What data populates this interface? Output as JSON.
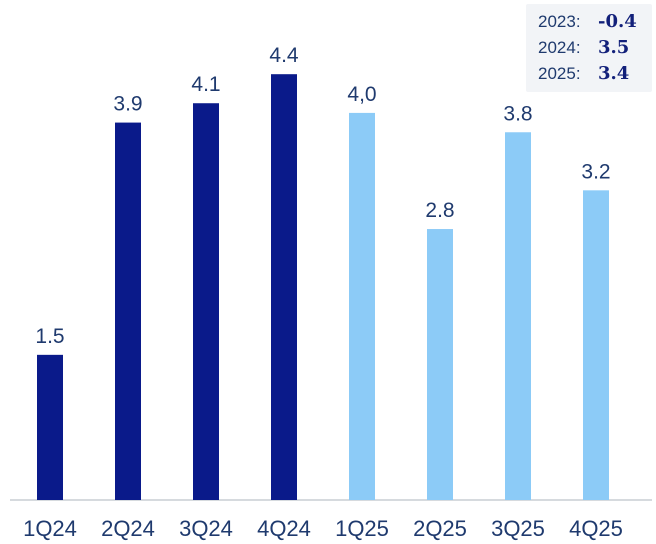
{
  "chart_data": {
    "type": "bar",
    "categories": [
      "1Q24",
      "2Q24",
      "3Q24",
      "4Q24",
      "1Q25",
      "2Q25",
      "3Q25",
      "4Q25"
    ],
    "values": [
      1.5,
      3.9,
      4.1,
      4.4,
      4.0,
      2.8,
      3.8,
      3.2
    ],
    "value_labels": [
      "1.5",
      "3.9",
      "4.1",
      "4.4",
      "4,0",
      "2.8",
      "3.8",
      "3.2"
    ],
    "colors": [
      "#0a1a8a",
      "#0a1a8a",
      "#0a1a8a",
      "#0a1a8a",
      "#8ccbf7",
      "#8ccbf7",
      "#8ccbf7",
      "#8ccbf7"
    ],
    "ylim": [
      0,
      4.65
    ],
    "grid": false,
    "legend": "none"
  },
  "annual": [
    {
      "label": "2023:",
      "value": "-0.4"
    },
    {
      "label": "2024:",
      "value": "3.5"
    },
    {
      "label": "2025:",
      "value": "3.4"
    }
  ]
}
